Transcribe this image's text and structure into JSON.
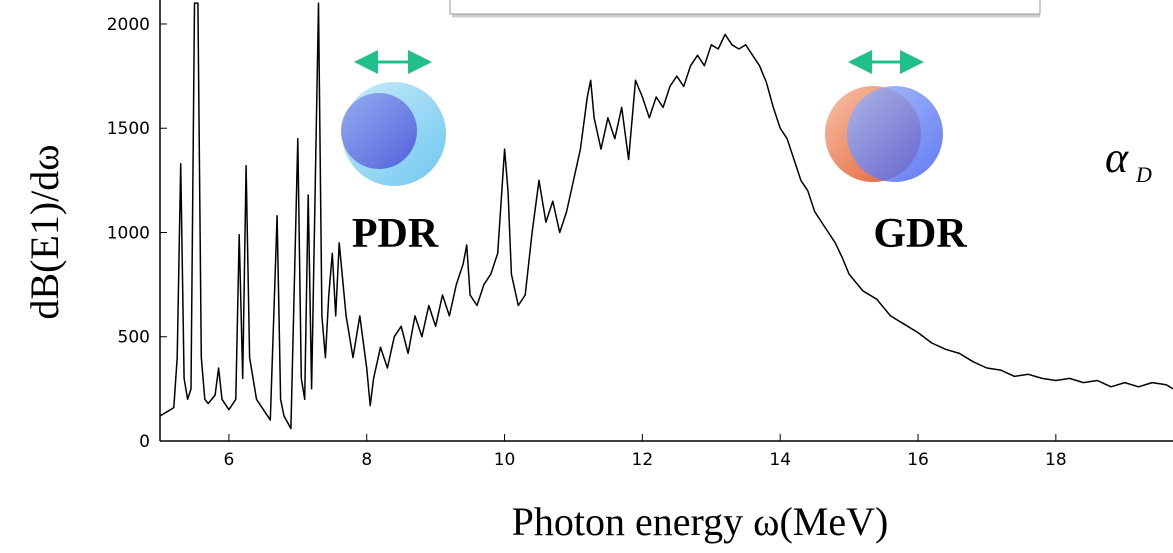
{
  "chart_data": {
    "type": "line",
    "xlabel": "Photon energy ω(MeV)",
    "ylabel": "dB(E1)/dω",
    "annotations": [
      "PDR",
      "GDR",
      "α",
      "D"
    ],
    "color": "#000000",
    "xlim": [
      5,
      19.7
    ],
    "ylim": [
      0,
      2115
    ],
    "xticks": [
      6,
      8,
      10,
      12,
      14,
      16,
      18
    ],
    "yticks": [
      0,
      500,
      1000,
      1500,
      2000
    ],
    "x": [
      5.0,
      5.1,
      5.2,
      5.25,
      5.3,
      5.35,
      5.4,
      5.45,
      5.5,
      5.55,
      5.6,
      5.65,
      5.7,
      5.8,
      5.85,
      5.9,
      6.0,
      6.1,
      6.15,
      6.2,
      6.25,
      6.3,
      6.4,
      6.5,
      6.6,
      6.7,
      6.75,
      6.8,
      6.9,
      7.0,
      7.05,
      7.1,
      7.15,
      7.2,
      7.3,
      7.35,
      7.4,
      7.45,
      7.5,
      7.55,
      7.6,
      7.7,
      7.8,
      7.9,
      8.0,
      8.05,
      8.1,
      8.2,
      8.3,
      8.4,
      8.5,
      8.6,
      8.7,
      8.8,
      8.9,
      9.0,
      9.1,
      9.2,
      9.3,
      9.4,
      9.45,
      9.5,
      9.6,
      9.7,
      9.8,
      9.9,
      10.0,
      10.05,
      10.1,
      10.2,
      10.3,
      10.4,
      10.5,
      10.6,
      10.7,
      10.8,
      10.9,
      11.0,
      11.1,
      11.2,
      11.25,
      11.3,
      11.4,
      11.5,
      11.6,
      11.7,
      11.8,
      11.9,
      12.0,
      12.1,
      12.2,
      12.3,
      12.4,
      12.5,
      12.6,
      12.7,
      12.8,
      12.9,
      13.0,
      13.1,
      13.2,
      13.3,
      13.4,
      13.5,
      13.6,
      13.7,
      13.8,
      13.9,
      14.0,
      14.1,
      14.2,
      14.3,
      14.4,
      14.5,
      14.6,
      14.7,
      14.8,
      14.9,
      15.0,
      15.2,
      15.4,
      15.6,
      15.8,
      16.0,
      16.2,
      16.4,
      16.6,
      16.8,
      17.0,
      17.2,
      17.4,
      17.6,
      17.8,
      18.0,
      18.2,
      18.4,
      18.6,
      18.8,
      19.0,
      19.2,
      19.4,
      19.6,
      19.7
    ],
    "values": [
      120,
      140,
      160,
      400,
      1330,
      300,
      200,
      250,
      2100,
      2100,
      400,
      200,
      180,
      220,
      350,
      200,
      150,
      200,
      990,
      300,
      1320,
      400,
      200,
      150,
      100,
      1080,
      200,
      120,
      60,
      1450,
      300,
      200,
      1180,
      250,
      2100,
      600,
      400,
      700,
      900,
      600,
      950,
      600,
      400,
      600,
      350,
      170,
      300,
      450,
      350,
      500,
      550,
      420,
      600,
      500,
      650,
      550,
      700,
      600,
      750,
      850,
      940,
      700,
      650,
      750,
      800,
      900,
      1400,
      1200,
      800,
      650,
      700,
      1000,
      1250,
      1050,
      1150,
      1000,
      1100,
      1250,
      1400,
      1650,
      1730,
      1550,
      1400,
      1550,
      1450,
      1600,
      1350,
      1730,
      1650,
      1550,
      1650,
      1600,
      1700,
      1750,
      1700,
      1800,
      1850,
      1800,
      1900,
      1880,
      1950,
      1900,
      1880,
      1900,
      1850,
      1800,
      1720,
      1600,
      1500,
      1450,
      1350,
      1250,
      1200,
      1100,
      1050,
      1000,
      950,
      880,
      800,
      720,
      680,
      600,
      560,
      520,
      470,
      440,
      420,
      380,
      350,
      340,
      310,
      320,
      300,
      290,
      300,
      280,
      290,
      260,
      280,
      260,
      280,
      270,
      250
    ]
  }
}
